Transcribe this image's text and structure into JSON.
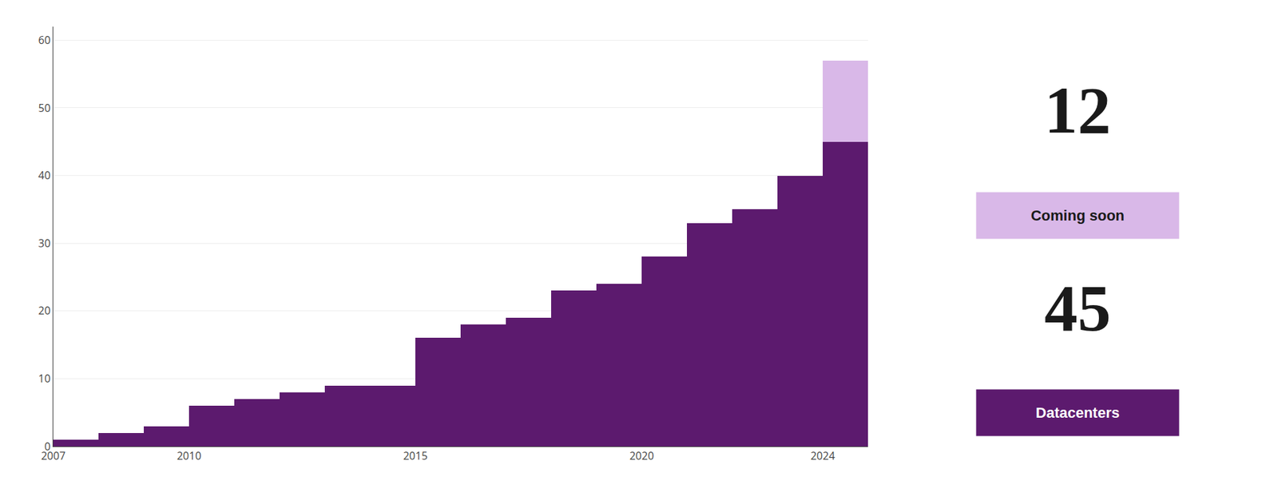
{
  "chart_data": {
    "type": "bar",
    "x": [
      2007,
      2008,
      2009,
      2010,
      2011,
      2012,
      2013,
      2014,
      2015,
      2016,
      2017,
      2018,
      2019,
      2020,
      2021,
      2022,
      2023,
      2024
    ],
    "series": [
      {
        "color": "#5c1a6e",
        "values": [
          1,
          2,
          3,
          6,
          7,
          8,
          9,
          9,
          16,
          18,
          19,
          23,
          24,
          28,
          33,
          35,
          40,
          45
        ]
      },
      {
        "color": "#d9b8e8",
        "values": [
          null,
          null,
          null,
          null,
          null,
          null,
          null,
          null,
          null,
          null,
          null,
          null,
          null,
          null,
          null,
          null,
          null,
          12
        ]
      }
    ],
    "stacked": true,
    "xlim": [
      2007,
      2025
    ],
    "xticks": [
      2007,
      2010,
      2015,
      2020,
      2024
    ],
    "ylim": [
      0,
      62
    ],
    "yticks": [
      0,
      10,
      20,
      30,
      40,
      50,
      60
    ],
    "grid": true,
    "annotations": [
      {
        "text": "12"
      },
      {
        "text": "Coming soon",
        "color": "#d9b8e8"
      },
      {
        "text": "45"
      },
      {
        "text": "Datacenters",
        "color": "#5c1a6e"
      }
    ]
  }
}
